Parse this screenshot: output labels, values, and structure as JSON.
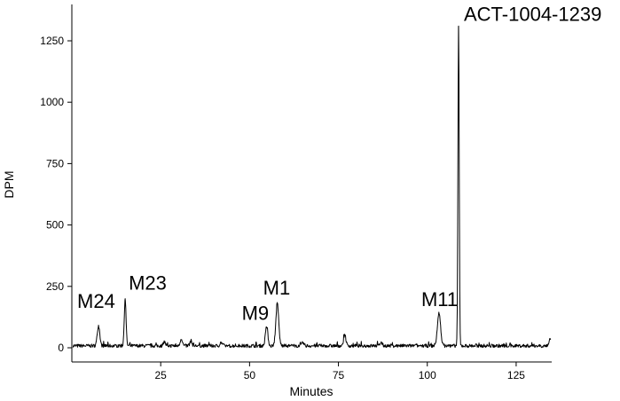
{
  "chart_data": {
    "type": "line",
    "xlabel": "Minutes",
    "ylabel": "DPM",
    "xlim": [
      0,
      135
    ],
    "ylim": [
      -20,
      1400
    ],
    "x_ticks": [
      25,
      50,
      75,
      100,
      125
    ],
    "y_ticks": [
      0,
      250,
      500,
      750,
      1000,
      1250
    ],
    "grid": false,
    "legend": "none",
    "baseline": 8,
    "peaks": [
      {
        "label": "M24",
        "x": 7.5,
        "y": 90,
        "width": 0.35
      },
      {
        "label": "M23",
        "x": 15.0,
        "y": 200,
        "width": 0.25
      },
      {
        "label": "M9",
        "x": 54.8,
        "y": 85,
        "width": 0.35
      },
      {
        "label": "M1",
        "x": 57.8,
        "y": 180,
        "width": 0.4
      },
      {
        "label": "M11",
        "x": 103.3,
        "y": 140,
        "width": 0.45
      },
      {
        "label": "ACT-1004-1239",
        "x": 108.8,
        "y": 1310,
        "width": 0.18
      }
    ],
    "minor_peaks": [
      {
        "x": 26.0,
        "y": 25
      },
      {
        "x": 30.8,
        "y": 38
      },
      {
        "x": 33.5,
        "y": 28
      },
      {
        "x": 42.0,
        "y": 22
      },
      {
        "x": 65.0,
        "y": 20
      },
      {
        "x": 76.8,
        "y": 55
      },
      {
        "x": 87.0,
        "y": 22
      },
      {
        "x": 134.5,
        "y": 35
      }
    ]
  }
}
